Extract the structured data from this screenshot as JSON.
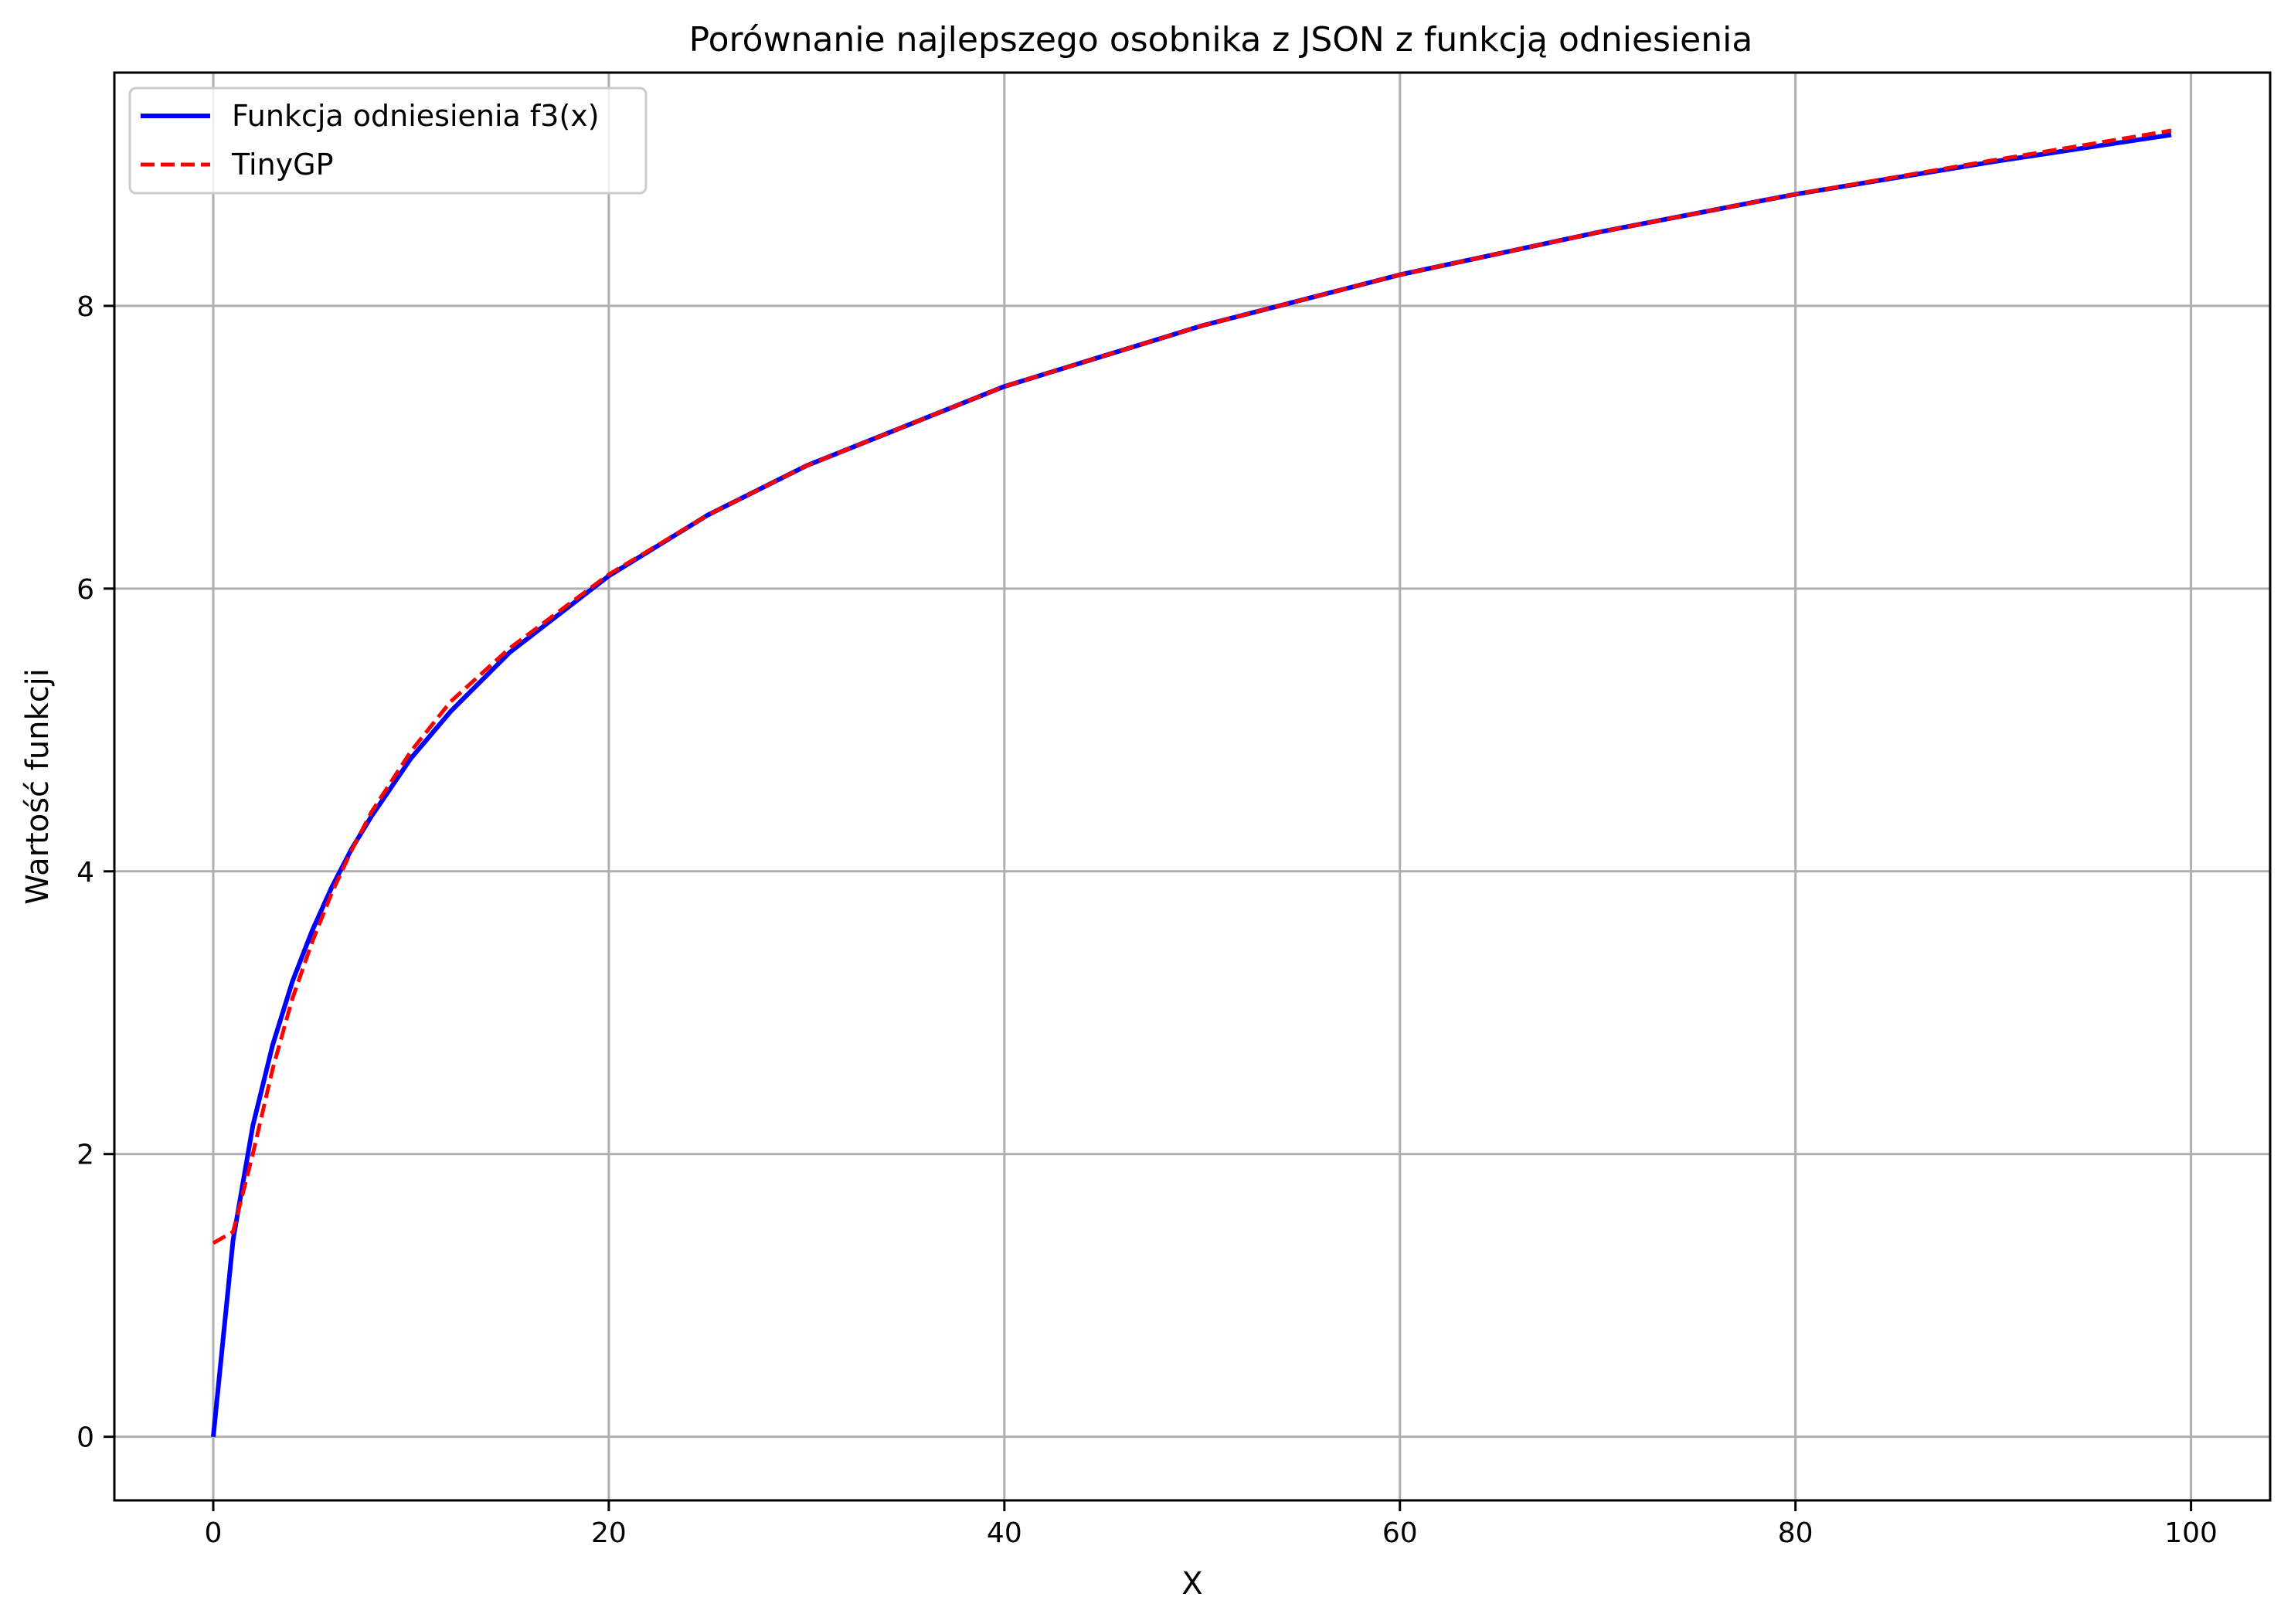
{
  "chart_data": {
    "type": "line",
    "title": "Porównanie najlepszego osobnika z JSON z funkcją odniesienia",
    "xlabel": "X",
    "ylabel": "Wartość funkcji",
    "xlim": [
      -5,
      104
    ],
    "ylim": [
      -0.45,
      9.65
    ],
    "xticks": [
      0,
      20,
      40,
      60,
      80,
      100
    ],
    "yticks": [
      0,
      2,
      4,
      6,
      8
    ],
    "grid": true,
    "legend_position": "top-left",
    "series": [
      {
        "name": "Funkcja odniesienia f3(x)",
        "color": "#0000ff",
        "style": "solid",
        "x": [
          0,
          1,
          2,
          3,
          4,
          5,
          6,
          7,
          8,
          10,
          12,
          15,
          20,
          25,
          30,
          40,
          50,
          60,
          70,
          80,
          90,
          99
        ],
        "values": [
          0,
          1.39,
          2.2,
          2.77,
          3.22,
          3.58,
          3.89,
          4.16,
          4.39,
          4.8,
          5.13,
          5.55,
          6.09,
          6.52,
          6.87,
          7.43,
          7.86,
          8.22,
          8.52,
          8.79,
          9.02,
          9.21
        ]
      },
      {
        "name": "TinyGP",
        "color": "#ff0000",
        "style": "dashed",
        "x": [
          0,
          1,
          2,
          3,
          4,
          5,
          6,
          7,
          8,
          10,
          12,
          15,
          20,
          25,
          30,
          40,
          50,
          60,
          70,
          80,
          90,
          99
        ],
        "values": [
          1.37,
          1.45,
          2.0,
          2.6,
          3.1,
          3.5,
          3.85,
          4.15,
          4.42,
          4.85,
          5.2,
          5.58,
          6.1,
          6.52,
          6.87,
          7.43,
          7.86,
          8.22,
          8.52,
          8.79,
          9.03,
          9.24
        ]
      }
    ]
  }
}
